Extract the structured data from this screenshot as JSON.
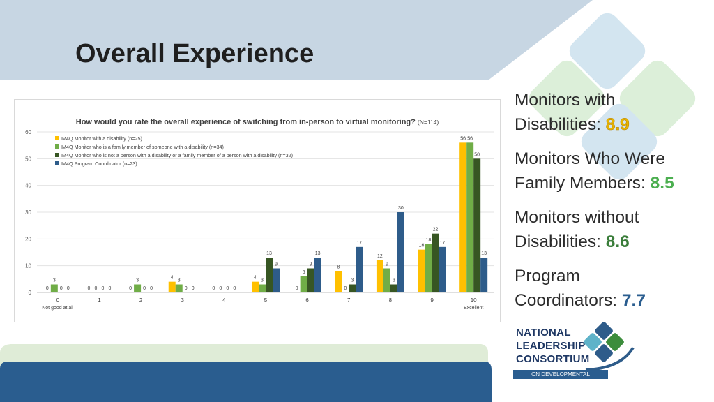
{
  "slide": {
    "title": "Overall Experience"
  },
  "colors": {
    "band_top": "#c7d6e3",
    "band_bottom": "#2a5d8f",
    "diamond_blue": "#d2e6f0",
    "diamond_green": "#dcefd9"
  },
  "stats": [
    {
      "label_line1": "Monitors with",
      "label_line2": "Disabilities: ",
      "value": "8.9",
      "color": "#f2b600"
    },
    {
      "label_line1": "Monitors Who Were",
      "label_line2": "Family Members: ",
      "value": "8.5",
      "color": "#4caf50"
    },
    {
      "label_line1": "Monitors without",
      "label_line2": "Disabilities: ",
      "value": "8.6",
      "color": "#3a7d3a"
    },
    {
      "label_line1": "Program",
      "label_line2": "Coordinators: ",
      "value": "7.7",
      "color": "#2a5d8f"
    }
  ],
  "logo": {
    "line1": "NATIONAL",
    "line2": "LEADERSHIP",
    "line3": "CONSORTIUM",
    "subtitle": "ON DEVELOPMENTAL DISABILITIES"
  },
  "chart_data": {
    "type": "bar",
    "title": "How would you rate the overall experience of switching from in-person to virtual monitoring?",
    "title_note": "(N=114)",
    "categories": [
      "0",
      "1",
      "2",
      "3",
      "4",
      "5",
      "6",
      "7",
      "8",
      "9",
      "10"
    ],
    "category_sublabels": {
      "0": "Not good at all",
      "10": "Excellent"
    },
    "ylim": [
      0,
      60
    ],
    "yticks": [
      0,
      10,
      20,
      30,
      40,
      50,
      60
    ],
    "grid": true,
    "legend_position": "top-left",
    "series": [
      {
        "name": "IM4Q Monitor with a disability (n=25)",
        "color": "#ffc000",
        "values": [
          0,
          0,
          0,
          4,
          0,
          4,
          0,
          8,
          12,
          16,
          56
        ]
      },
      {
        "name": "IM4Q Monitor who is a family member of someone with a disability (n=34)",
        "color": "#70ad47",
        "values": [
          3,
          0,
          3,
          3,
          0,
          3,
          6,
          0,
          9,
          18,
          56
        ]
      },
      {
        "name": "IM4Q Monitor who is not a person with a disability or a family member of a person with a disability (n=32)",
        "color": "#375623",
        "values": [
          0,
          0,
          0,
          0,
          0,
          13,
          9,
          3,
          3,
          22,
          50
        ]
      },
      {
        "name": "IM4Q Program Coordinator (n=23)",
        "color": "#2e5c8a",
        "values": [
          0,
          0,
          0,
          0,
          0,
          9,
          13,
          17,
          30,
          17,
          13
        ]
      }
    ]
  }
}
